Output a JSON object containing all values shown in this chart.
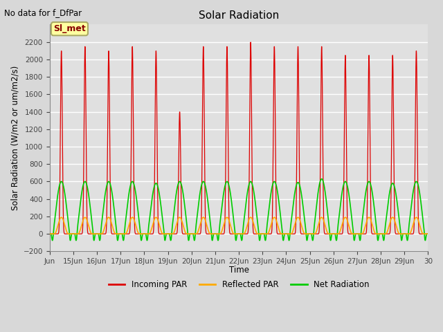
{
  "title": "Solar Radiation",
  "top_left_text": "No data for f_DfPar",
  "ylabel": "Solar Radiation (W/m2 or um/m2/s)",
  "xlabel": "Time",
  "ylim": [
    -200,
    2400
  ],
  "yticks": [
    -200,
    0,
    200,
    400,
    600,
    800,
    1000,
    1200,
    1400,
    1600,
    1800,
    2000,
    2200
  ],
  "fig_bg_color": "#d8d8d8",
  "plot_bg_color": "#e0e0e0",
  "grid_color": "#ffffff",
  "legend_label": "Sl_met",
  "legend_box_color": "#ffffa0",
  "legend_box_border": "#aaaa66",
  "line_colors": {
    "incoming": "#dd0000",
    "reflected": "#ffaa00",
    "net": "#00cc00"
  },
  "n_days": 16,
  "points_per_day": 200
}
